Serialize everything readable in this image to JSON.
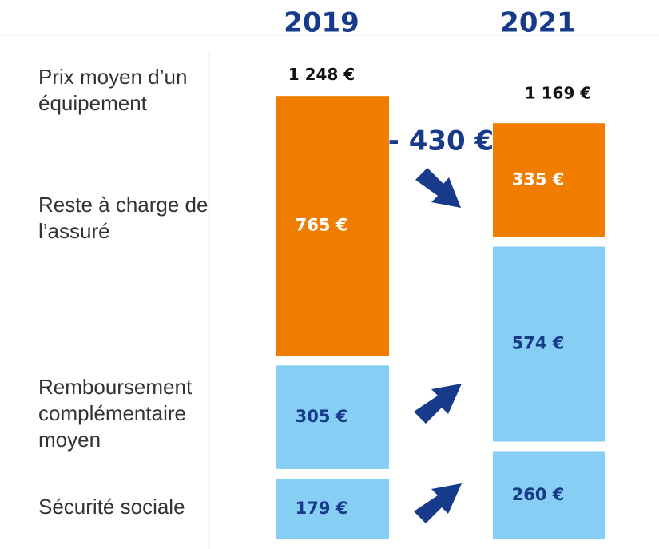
{
  "chart_data": {
    "type": "stacked-bar",
    "categories": [
      "2019",
      "2021"
    ],
    "total_name": "Prix moyen d’un équipement",
    "totals": [
      1248,
      1169
    ],
    "total_labels": [
      "1 248 €",
      "1 169 €"
    ],
    "annotation": "- 430 €",
    "series": [
      {
        "name": "Sécurité sociale",
        "color": "#87cef4",
        "label_color": "#173a8a",
        "values": [
          179,
          260
        ],
        "value_labels": [
          "179 €",
          "260 €"
        ]
      },
      {
        "name": "Remboursement complémentaire moyen",
        "color": "#87cef4",
        "label_color": "#173a8a",
        "values": [
          305,
          574
        ],
        "value_labels": [
          "305 €",
          "574 €"
        ]
      },
      {
        "name": "Reste à charge de l’assuré",
        "color": "#f07d00",
        "label_color": "#ffffff",
        "values": [
          765,
          335
        ],
        "value_labels": [
          "765 €",
          "335 €"
        ]
      }
    ]
  }
}
